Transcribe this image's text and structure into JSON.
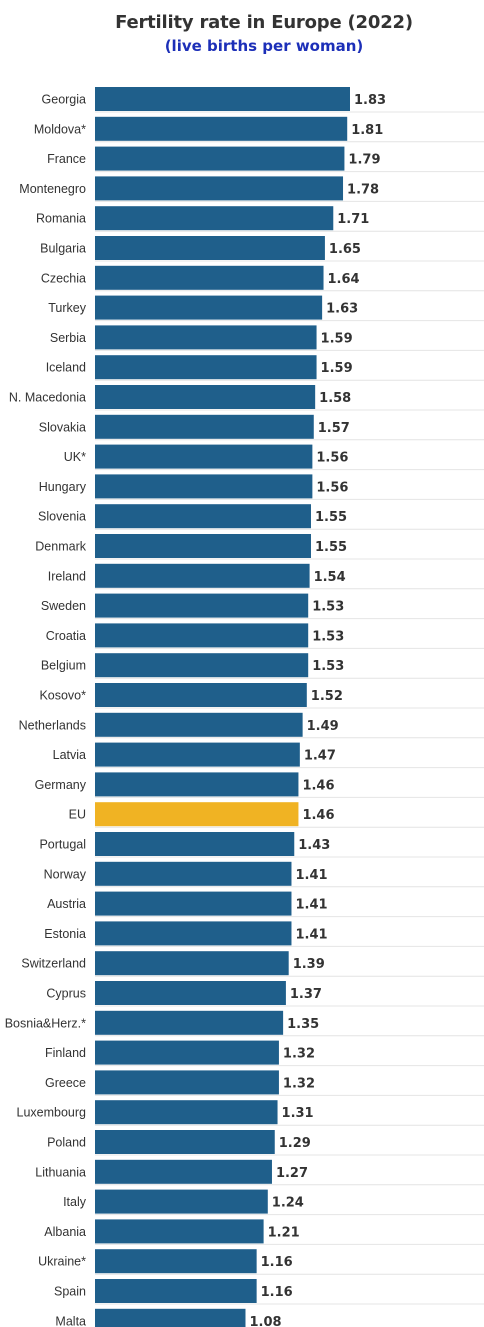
{
  "chart_data": {
    "type": "bar",
    "orientation": "horizontal",
    "title": "Fertility rate in Europe (2022)",
    "subtitle": "(live births per woman)",
    "categories": [
      "Georgia",
      "Moldova*",
      "France",
      "Montenegro",
      "Romania",
      "Bulgaria",
      "Czechia",
      "Turkey",
      "Serbia",
      "Iceland",
      "N. Macedonia",
      "Slovakia",
      "UK*",
      "Hungary",
      "Slovenia",
      "Denmark",
      "Ireland",
      "Sweden",
      "Croatia",
      "Belgium",
      "Kosovo*",
      "Netherlands",
      "Latvia",
      "Germany",
      "EU",
      "Portugal",
      "Norway",
      "Austria",
      "Estonia",
      "Switzerland",
      "Cyprus",
      "Bosnia&Herz.*",
      "Finland",
      "Greece",
      "Luxembourg",
      "Poland",
      "Lithuania",
      "Italy",
      "Albania",
      "Ukraine*",
      "Spain",
      "Malta"
    ],
    "values": [
      1.83,
      1.81,
      1.79,
      1.78,
      1.71,
      1.65,
      1.64,
      1.63,
      1.59,
      1.59,
      1.58,
      1.57,
      1.56,
      1.56,
      1.55,
      1.55,
      1.54,
      1.53,
      1.53,
      1.53,
      1.52,
      1.49,
      1.47,
      1.46,
      1.46,
      1.43,
      1.41,
      1.41,
      1.41,
      1.39,
      1.37,
      1.35,
      1.32,
      1.32,
      1.31,
      1.29,
      1.27,
      1.24,
      1.21,
      1.16,
      1.16,
      1.08
    ],
    "value_labels": [
      "1.83",
      "1.81",
      "1.79",
      "1.78",
      "1.71",
      "1.65",
      "1.64",
      "1.63",
      "1.59",
      "1.59",
      "1.58",
      "1.57",
      "1.56",
      "1.56",
      "1.55",
      "1.55",
      "1.54",
      "1.53",
      "1.53",
      "1.53",
      "1.52",
      "1.49",
      "1.47",
      "1.46",
      "1.46",
      "1.43",
      "1.41",
      "1.41",
      "1.41",
      "1.39",
      "1.37",
      "1.35",
      "1.32",
      "1.32",
      "1.31",
      "1.29",
      "1.27",
      "1.24",
      "1.21",
      "1.16",
      "1.16",
      "1.08"
    ],
    "highlight_category": "EU",
    "xlim": [
      0,
      1.83
    ],
    "grid": true,
    "colors": {
      "bar": "#1f5f8b",
      "highlight": "#f0b323",
      "grid": "#e4e4e4",
      "title": "#333333",
      "subtitle": "#1c2fb8"
    }
  }
}
